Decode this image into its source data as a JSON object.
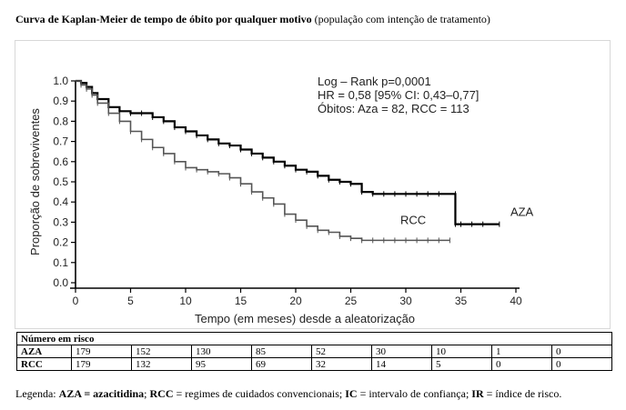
{
  "caption": {
    "bold": "Curva de Kaplan-Meier de tempo de óbito por qualquer motivo",
    "normal": " (população com intenção de tratamento)"
  },
  "chart_data": {
    "type": "line",
    "xlabel": "Tempo (em meses) desde a aleatorização",
    "ylabel": "Proporção de sobreviventes",
    "xlim": [
      0,
      40
    ],
    "ylim": [
      0.0,
      1.0
    ],
    "xticks": [
      "0",
      "5",
      "10",
      "15",
      "20",
      "25",
      "30",
      "35",
      "40"
    ],
    "yticks": [
      "0.0",
      "0.1",
      "0.2",
      "0.3",
      "0.4",
      "0.5",
      "0.6",
      "0.7",
      "0.8",
      "0.9",
      "1.0"
    ],
    "grid": false,
    "annotations": [
      "Log – Rank p=0,0001",
      "HR = 0,58 [95% CI: 0,43–0,77]",
      "Óbitos: Aza = 82, RCC = 113"
    ],
    "series": [
      {
        "name": "AZA",
        "color": "#000000",
        "x": [
          0,
          0.5,
          1,
          1.5,
          2,
          3,
          4,
          5,
          6,
          7,
          8,
          9,
          10,
          11,
          12,
          13,
          14,
          15,
          16,
          17,
          18,
          19,
          20,
          21,
          22,
          23,
          24,
          25,
          26,
          27,
          28,
          29,
          30,
          31,
          32,
          33,
          34.5,
          34.5,
          35,
          36,
          37,
          38.5
        ],
        "y": [
          1.0,
          0.99,
          0.97,
          0.94,
          0.91,
          0.87,
          0.85,
          0.84,
          0.84,
          0.82,
          0.8,
          0.77,
          0.75,
          0.73,
          0.71,
          0.69,
          0.68,
          0.66,
          0.64,
          0.62,
          0.6,
          0.58,
          0.56,
          0.55,
          0.53,
          0.51,
          0.5,
          0.49,
          0.45,
          0.44,
          0.44,
          0.44,
          0.44,
          0.44,
          0.44,
          0.44,
          0.44,
          0.29,
          0.29,
          0.29,
          0.29,
          0.29
        ]
      },
      {
        "name": "RCC",
        "color": "#555555",
        "x": [
          0,
          0.5,
          1,
          1.5,
          2,
          3,
          4,
          5,
          6,
          7,
          8,
          9,
          10,
          11,
          12,
          13,
          14,
          15,
          16,
          17,
          18,
          19,
          20,
          21,
          22,
          23,
          24,
          25,
          26,
          27,
          28,
          29,
          30,
          31,
          32,
          33,
          34
        ],
        "y": [
          1.0,
          0.98,
          0.96,
          0.93,
          0.89,
          0.84,
          0.8,
          0.75,
          0.71,
          0.67,
          0.64,
          0.6,
          0.57,
          0.56,
          0.55,
          0.54,
          0.52,
          0.49,
          0.45,
          0.42,
          0.39,
          0.34,
          0.31,
          0.28,
          0.26,
          0.25,
          0.23,
          0.22,
          0.21,
          0.21,
          0.21,
          0.21,
          0.21,
          0.21,
          0.21,
          0.21,
          0.21
        ]
      }
    ],
    "series_labels": [
      {
        "text": "RCC",
        "x": 29.5,
        "y": 0.29
      },
      {
        "text": "AZA",
        "x": 39.5,
        "y": 0.33
      }
    ]
  },
  "risk_table": {
    "title": "Número em risco",
    "rows": [
      {
        "label": "AZA",
        "values": [
          "179",
          "152",
          "130",
          "85",
          "52",
          "30",
          "10",
          "1",
          "0"
        ]
      },
      {
        "label": "RCC",
        "values": [
          "179",
          "132",
          "95",
          "69",
          "32",
          "14",
          "5",
          "0",
          "0"
        ]
      }
    ]
  },
  "legend": {
    "prefix": "Legenda: ",
    "b1": "AZA = azacitidina",
    "t1": "; ",
    "b2": "RCC",
    "t2": " = regimes de cuidados convencionais; ",
    "b3": "IC",
    "t3": " = intervalo de confiança; ",
    "b4": "IR",
    "t4": " = índice de risco."
  }
}
